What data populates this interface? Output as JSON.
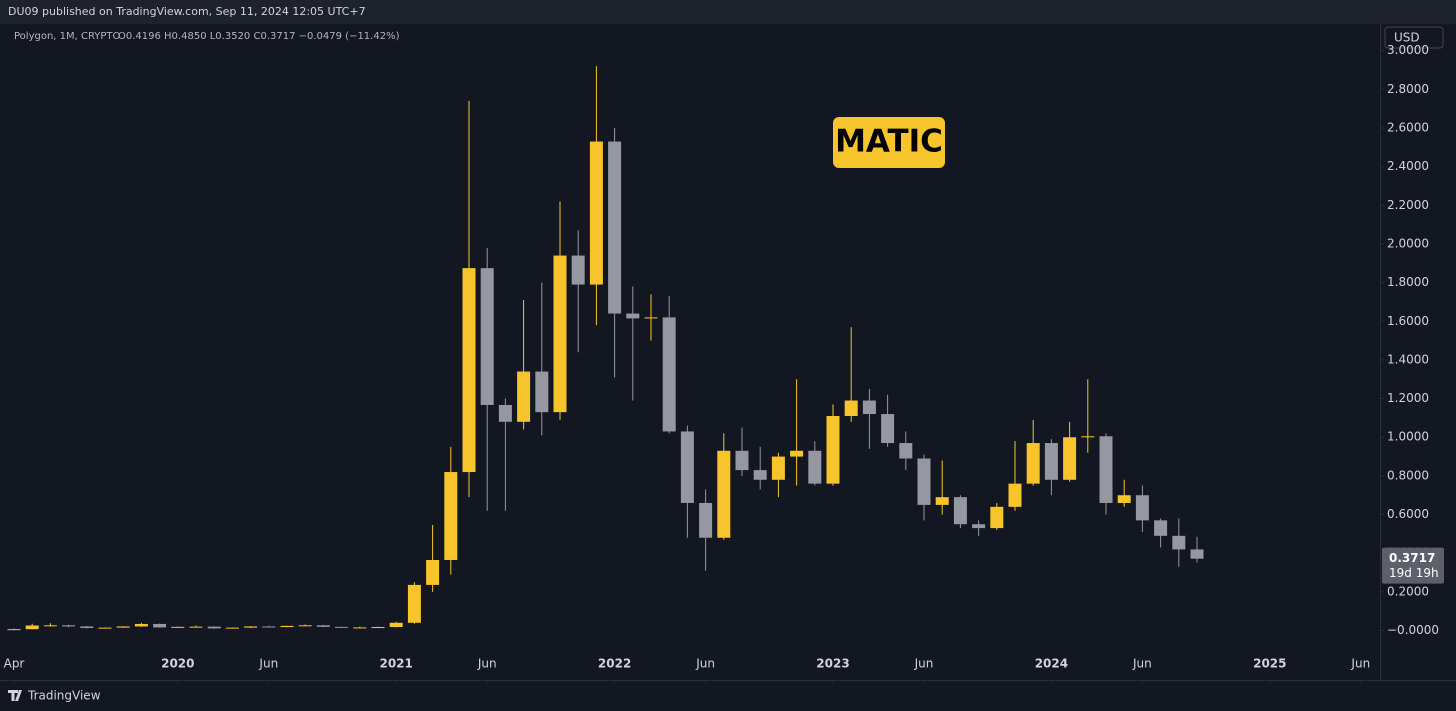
{
  "header": "DU09 published on TradingView.com, Sep 11, 2024 12:05 UTC+7",
  "footer": "TradingView",
  "chart_data": {
    "type": "candlestick",
    "symbol": "Polygon, 1M, CRYPTO",
    "ohlc_legend": "O0.4196 H0.4850 L0.3520 C0.3717 −0.0479 (−11.42%)",
    "currency": "USD",
    "annotation": "MATIC",
    "countdown": "19d 19h",
    "up_color": "#f7c52b",
    "down_color": "#9598a1",
    "grid": false,
    "x": [
      "2019-04",
      "2019-05",
      "2019-06",
      "2019-07",
      "2019-08",
      "2019-09",
      "2019-10",
      "2019-11",
      "2019-12",
      "2020-01",
      "2020-02",
      "2020-03",
      "2020-04",
      "2020-05",
      "2020-06",
      "2020-07",
      "2020-08",
      "2020-09",
      "2020-10",
      "2020-11",
      "2020-12",
      "2021-01",
      "2021-02",
      "2021-03",
      "2021-04",
      "2021-05",
      "2021-06",
      "2021-07",
      "2021-08",
      "2021-09",
      "2021-10",
      "2021-11",
      "2021-12",
      "2022-01",
      "2022-02",
      "2022-03",
      "2022-04",
      "2022-05",
      "2022-06",
      "2022-07",
      "2022-08",
      "2022-09",
      "2022-10",
      "2022-11",
      "2022-12",
      "2023-01",
      "2023-02",
      "2023-03",
      "2023-04",
      "2023-05",
      "2023-06",
      "2023-07",
      "2023-08",
      "2023-09",
      "2023-10",
      "2023-11",
      "2023-12",
      "2024-01",
      "2024-02",
      "2024-03",
      "2024-04",
      "2024-05",
      "2024-06",
      "2024-07",
      "2024-08",
      "2024-09"
    ],
    "open": [
      0.004,
      0.007,
      0.026,
      0.027,
      0.021,
      0.013,
      0.015,
      0.021,
      0.034,
      0.016,
      0.019,
      0.02,
      0.011,
      0.015,
      0.021,
      0.018,
      0.024,
      0.027,
      0.019,
      0.015,
      0.016,
      0.018,
      0.04,
      0.236,
      0.365,
      0.82,
      1.875,
      1.167,
      1.08,
      1.34,
      1.13,
      1.94,
      1.79,
      2.53,
      1.64,
      1.615,
      1.62,
      1.03,
      0.66,
      0.48,
      0.93,
      0.83,
      0.78,
      0.9,
      0.93,
      0.76,
      1.11,
      1.19,
      1.12,
      0.97,
      0.89,
      0.65,
      0.69,
      0.55,
      0.53,
      0.64,
      0.76,
      0.97,
      0.78,
      1.0,
      1.005,
      0.66,
      0.7,
      0.57,
      0.49,
      0.4196
    ],
    "high": [
      0.01,
      0.035,
      0.038,
      0.03,
      0.024,
      0.016,
      0.022,
      0.04,
      0.036,
      0.02,
      0.026,
      0.022,
      0.016,
      0.022,
      0.025,
      0.025,
      0.031,
      0.029,
      0.02,
      0.02,
      0.02,
      0.045,
      0.25,
      0.546,
      0.95,
      2.74,
      1.98,
      1.2,
      1.71,
      1.8,
      2.22,
      2.07,
      2.92,
      2.6,
      1.78,
      1.74,
      1.73,
      1.06,
      0.73,
      1.02,
      1.05,
      0.95,
      0.92,
      1.3,
      0.98,
      1.17,
      1.57,
      1.25,
      1.22,
      1.03,
      0.91,
      0.88,
      0.7,
      0.57,
      0.66,
      0.98,
      1.09,
      0.99,
      1.08,
      1.3,
      1.02,
      0.78,
      0.75,
      0.58,
      0.58,
      0.485
    ],
    "low": [
      0.003,
      0.006,
      0.02,
      0.017,
      0.012,
      0.011,
      0.014,
      0.019,
      0.015,
      0.014,
      0.018,
      0.009,
      0.01,
      0.013,
      0.016,
      0.016,
      0.022,
      0.017,
      0.014,
      0.014,
      0.015,
      0.016,
      0.035,
      0.2,
      0.29,
      0.69,
      0.62,
      0.62,
      1.04,
      1.01,
      1.09,
      1.44,
      1.58,
      1.31,
      1.19,
      1.5,
      1.02,
      0.48,
      0.31,
      0.47,
      0.8,
      0.73,
      0.69,
      0.75,
      0.75,
      0.75,
      1.08,
      0.94,
      0.95,
      0.83,
      0.57,
      0.6,
      0.53,
      0.49,
      0.52,
      0.62,
      0.75,
      0.7,
      0.77,
      0.92,
      0.6,
      0.64,
      0.51,
      0.43,
      0.33,
      0.352
    ],
    "close": [
      0.007,
      0.026,
      0.027,
      0.021,
      0.013,
      0.015,
      0.021,
      0.034,
      0.016,
      0.019,
      0.02,
      0.011,
      0.015,
      0.021,
      0.018,
      0.024,
      0.027,
      0.019,
      0.015,
      0.016,
      0.018,
      0.04,
      0.236,
      0.365,
      0.82,
      1.875,
      1.167,
      1.08,
      1.34,
      1.13,
      1.94,
      1.79,
      2.53,
      1.64,
      1.615,
      1.62,
      1.03,
      0.66,
      0.48,
      0.93,
      0.83,
      0.78,
      0.9,
      0.93,
      0.76,
      1.11,
      1.19,
      1.12,
      0.97,
      0.89,
      0.65,
      0.69,
      0.55,
      0.53,
      0.64,
      0.76,
      0.97,
      0.78,
      1.0,
      1.005,
      0.66,
      0.7,
      0.57,
      0.49,
      0.4196,
      0.3717
    ],
    "ylim": [
      -0.256,
      3.133
    ],
    "yticks": [
      {
        "value": 0,
        "label": "−0.0000"
      },
      {
        "value": 0.2,
        "label": "0.2000"
      },
      {
        "value": 0.4,
        "label": "0.4000"
      },
      {
        "value": 0.6,
        "label": "0.6000"
      },
      {
        "value": 0.8,
        "label": "0.8000"
      },
      {
        "value": 1.0,
        "label": "1.0000"
      },
      {
        "value": 1.2,
        "label": "1.2000"
      },
      {
        "value": 1.4,
        "label": "1.4000"
      },
      {
        "value": 1.6,
        "label": "1.6000"
      },
      {
        "value": 1.8,
        "label": "1.8000"
      },
      {
        "value": 2.0,
        "label": "2.0000"
      },
      {
        "value": 2.2,
        "label": "2.2000"
      },
      {
        "value": 2.4,
        "label": "2.4000"
      },
      {
        "value": 2.6,
        "label": "2.6000"
      },
      {
        "value": 2.8,
        "label": "2.8000"
      },
      {
        "value": 3.0,
        "label": "3.0000"
      }
    ],
    "xticks": [
      {
        "value": "2019-04",
        "label": "Apr"
      },
      {
        "value": "2020-01",
        "label": "2020"
      },
      {
        "value": "2020-06",
        "label": "Jun"
      },
      {
        "value": "2021-01",
        "label": "2021"
      },
      {
        "value": "2021-06",
        "label": "Jun"
      },
      {
        "value": "2022-01",
        "label": "2022"
      },
      {
        "value": "2022-06",
        "label": "Jun"
      },
      {
        "value": "2023-01",
        "label": "2023"
      },
      {
        "value": "2023-06",
        "label": "Jun"
      },
      {
        "value": "2024-01",
        "label": "2024"
      },
      {
        "value": "2024-06",
        "label": "Jun"
      },
      {
        "value": "2025-01",
        "label": "2025"
      },
      {
        "value": "2025-06",
        "label": "Jun"
      }
    ]
  }
}
